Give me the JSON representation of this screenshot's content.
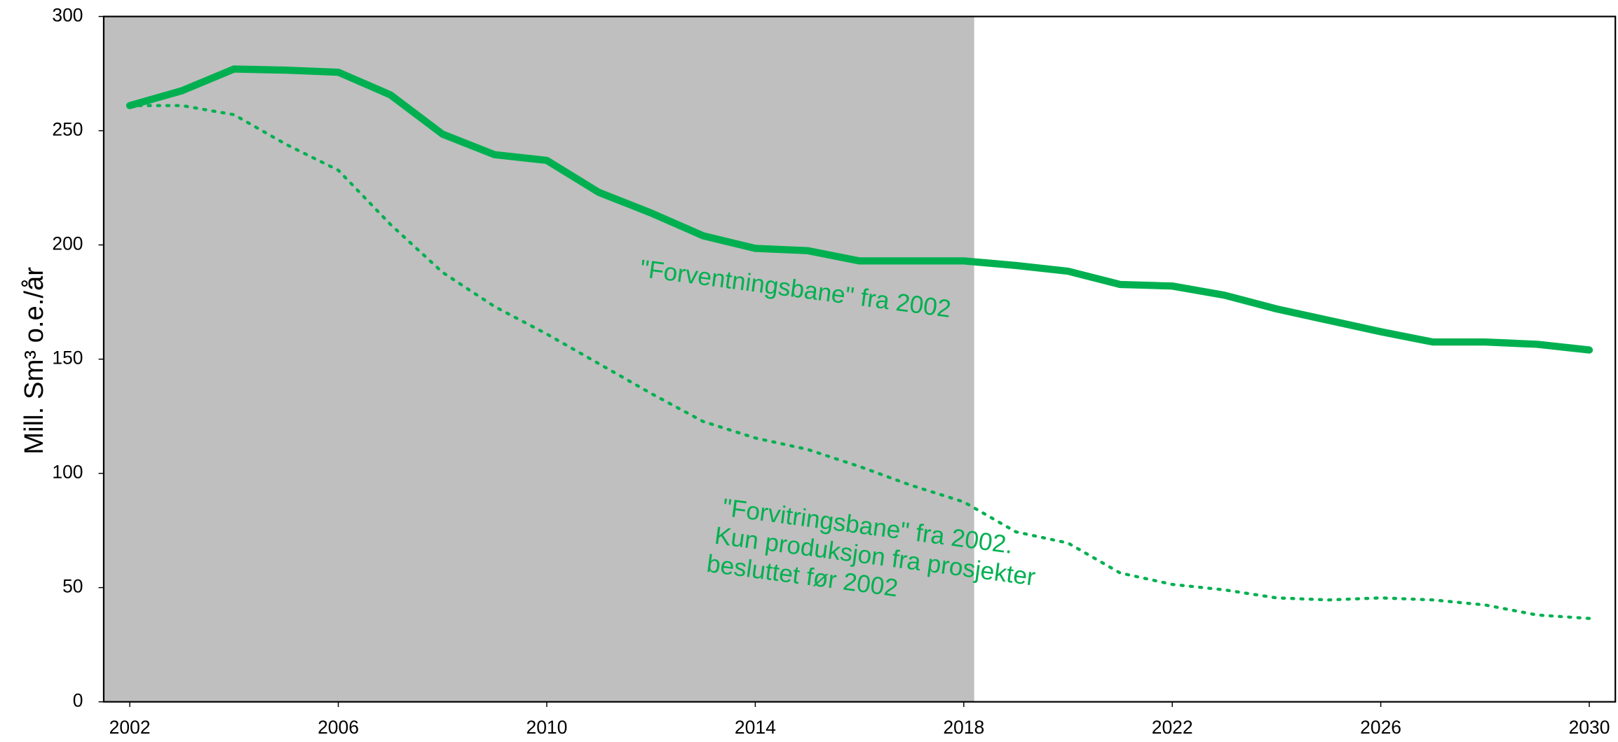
{
  "chart_data": {
    "type": "line",
    "y_label": "Mill. Sm³ o.e./år",
    "x": [
      2002,
      2003,
      2004,
      2005,
      2006,
      2007,
      2008,
      2009,
      2010,
      2011,
      2012,
      2013,
      2014,
      2015,
      2016,
      2017,
      2018,
      2019,
      2020,
      2021,
      2022,
      2023,
      2024,
      2025,
      2026,
      2027,
      2028,
      2029,
      2030
    ],
    "series": [
      {
        "name": "\"Forventningsbane\" fra 2002",
        "color": "#00b050",
        "style": "solid",
        "values": [
          261,
          267.5,
          277,
          276.5,
          275.6,
          265.7,
          248.5,
          239.5,
          237,
          223,
          214,
          204,
          198.5,
          197.5,
          193,
          193,
          193,
          191,
          188.5,
          182.7,
          182,
          178,
          172,
          167,
          162,
          157.5,
          157.5,
          156.5,
          154
        ]
      },
      {
        "name": "\"Forvitringsbane\" fra 2002.\nKun produksjon fra prosjekter\nbesluttet før 2002",
        "color": "#00b050",
        "style": "dotted",
        "values": [
          261,
          261,
          257,
          244,
          232.7,
          209,
          188,
          173,
          161,
          148,
          135,
          122.7,
          115.5,
          110.5,
          103,
          94.7,
          87.5,
          74.4,
          69.5,
          56.4,
          51.4,
          49,
          45.5,
          44.6,
          45.5,
          44.6,
          42.4,
          38,
          36.5
        ]
      }
    ],
    "xlim": [
      2001.5,
      2030.5
    ],
    "xticks": [
      2002,
      2006,
      2010,
      2014,
      2018,
      2022,
      2026,
      2030
    ],
    "ylim": [
      0,
      300
    ],
    "yticks": [
      0,
      50,
      100,
      150,
      200,
      250,
      300
    ],
    "shade_until": 2018.2,
    "shade_color": "#bfbfbf"
  }
}
